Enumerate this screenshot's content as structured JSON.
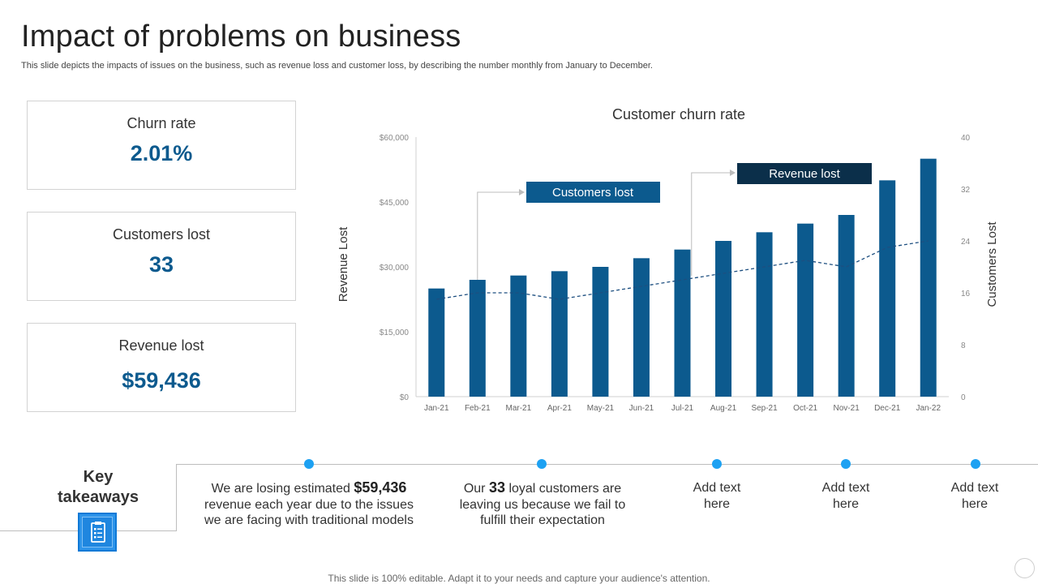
{
  "header": {
    "title": "Impact of problems on business",
    "subtitle": "This slide depicts the impacts of issues on the business, such as revenue loss and customer loss, by describing the number monthly from January to December."
  },
  "kpis": [
    {
      "label": "Churn rate",
      "value": "2.01%"
    },
    {
      "label": "Customers lost",
      "value": "33"
    },
    {
      "label": "Revenue lost",
      "value": "$59,436"
    }
  ],
  "chart_data": {
    "type": "bar",
    "title": "Customer churn rate",
    "categories": [
      "Jan-21",
      "Feb-21",
      "Mar-21",
      "Apr-21",
      "May-21",
      "Jun-21",
      "Jul-21",
      "Aug-21",
      "Sep-21",
      "Oct-21",
      "Nov-21",
      "Dec-21",
      "Jan-22"
    ],
    "series": [
      {
        "name": "Revenue lost",
        "type": "bar",
        "axis": "left",
        "values": [
          25000,
          27000,
          28000,
          29000,
          30000,
          32000,
          34000,
          36000,
          38000,
          40000,
          42000,
          50000,
          55000
        ]
      },
      {
        "name": "Customers lost",
        "type": "line",
        "style": "dashed",
        "axis": "right",
        "values": [
          15,
          16,
          16,
          15,
          16,
          17,
          18,
          19,
          20,
          21,
          20,
          23,
          24
        ]
      }
    ],
    "ylabel": "Revenue Lost",
    "y2label": "Customers Lost",
    "ylim": [
      0,
      60000
    ],
    "y2lim": [
      0,
      40
    ],
    "yticks": [
      "$0",
      "$15,000",
      "$30,000",
      "$45,000",
      "$60,000"
    ],
    "y2ticks": [
      "0",
      "8",
      "16",
      "24",
      "32",
      "40"
    ],
    "annotations": [
      "Customers lost",
      "Revenue lost"
    ],
    "colors": {
      "bar": "#0c5a8e",
      "line": "#1d4f80",
      "callout_customers": "#0c5a8e",
      "callout_revenue": "#0b2f4a"
    }
  },
  "takeaways": {
    "label": "Key takeaways",
    "icon": "clipboard-list-icon",
    "items": [
      {
        "pre": "We are losing estimated ",
        "highlight": "$59,436",
        "post": "revenue each year due to the issues we are facing with traditional models"
      },
      {
        "pre": "Our ",
        "highlight": "33",
        "post": "loyal customers are leaving us because we fail to fulfill their expectation"
      },
      {
        "text": "Add text here"
      },
      {
        "text": "Add text here"
      },
      {
        "text": "Add text here"
      }
    ]
  },
  "footer": "This slide is 100% editable. Adapt it to your needs and capture your audience's attention."
}
